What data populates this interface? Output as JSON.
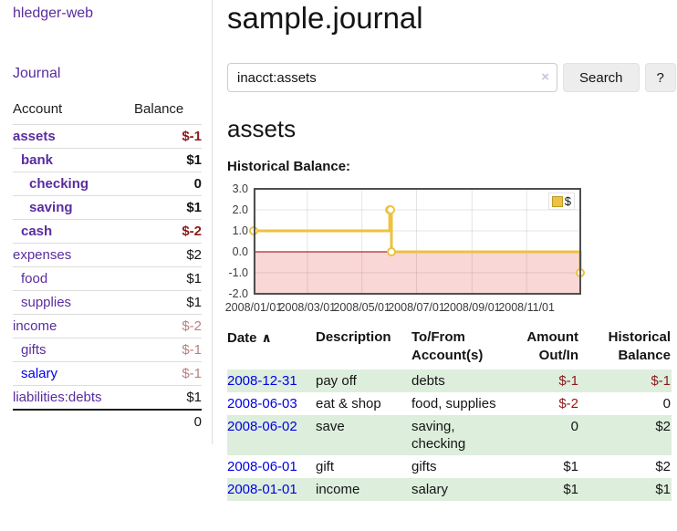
{
  "app": {
    "brand": "hledger-web",
    "nav_journal": "Journal"
  },
  "header": {
    "title": "sample.journal"
  },
  "search": {
    "value": "inacct:assets",
    "clear_icon": "×",
    "button_label": "Search",
    "help_label": "?"
  },
  "account_page": {
    "title": "assets",
    "chart_label": "Historical Balance:"
  },
  "sidebar": {
    "columns": [
      "Account",
      "Balance"
    ],
    "accounts": [
      {
        "name": "assets",
        "depth": 1,
        "balance": "$-1",
        "bold": true
      },
      {
        "name": "bank",
        "depth": 2,
        "balance": "$1",
        "bold": true
      },
      {
        "name": "checking",
        "depth": 3,
        "balance": "0",
        "bold": true
      },
      {
        "name": "saving",
        "depth": 3,
        "balance": "$1",
        "bold": true
      },
      {
        "name": "cash",
        "depth": 2,
        "balance": "$-2",
        "bold": true
      },
      {
        "name": "expenses",
        "depth": 1,
        "balance": "$2",
        "bold": false
      },
      {
        "name": "food",
        "depth": 2,
        "balance": "$1",
        "bold": false
      },
      {
        "name": "supplies",
        "depth": 2,
        "balance": "$1",
        "bold": false
      },
      {
        "name": "income",
        "depth": 1,
        "balance": "$-2",
        "bold": false
      },
      {
        "name": "gifts",
        "depth": 2,
        "balance": "$-1",
        "bold": false
      },
      {
        "name": "salary",
        "depth": 2,
        "balance": "$-1",
        "bold": false,
        "blue_link": true
      },
      {
        "name": "liabilities:debts",
        "depth": 1,
        "balance": "$1",
        "bold": false
      }
    ],
    "total": "0"
  },
  "chart_data": {
    "type": "line",
    "step": true,
    "title": "Historical Balance:",
    "series": [
      {
        "name": "$",
        "color": "#edc240",
        "points": [
          [
            "2008-01-01",
            1
          ],
          [
            "2008-06-01",
            2
          ],
          [
            "2008-06-02",
            2
          ],
          [
            "2008-06-03",
            0
          ],
          [
            "2008-12-31",
            -1
          ]
        ]
      }
    ],
    "x_range": [
      "2008-01-01",
      "2008-12-31"
    ],
    "x_tick_labels": [
      "2008/01/01",
      "2008/03/01",
      "2008/05/01",
      "2008/07/01",
      "2008/09/01",
      "2008/11/01"
    ],
    "y_ticks": [
      3,
      2,
      1,
      0,
      -1,
      -2
    ],
    "ylim": [
      -2,
      3
    ],
    "grid": true,
    "legend_position": "top-right",
    "zero_line_color": "#8b0000",
    "negative_region_color": "#fad7d7",
    "plot_border_color": "#4f4f4f"
  },
  "register": {
    "columns": [
      {
        "key": "date",
        "label": "Date",
        "sortable": true,
        "sort_icon": "∧",
        "align": "left"
      },
      {
        "key": "description",
        "label": "Description",
        "sortable": false,
        "align": "left"
      },
      {
        "key": "accounts",
        "label": "To/From Account(s)",
        "sortable": false,
        "align": "left"
      },
      {
        "key": "amount",
        "label": "Amount Out/In",
        "sortable": false,
        "align": "right"
      },
      {
        "key": "balance",
        "label": "Historical Balance",
        "sortable": false,
        "align": "right"
      }
    ],
    "rows": [
      {
        "date": "2008-12-31",
        "description": "pay off",
        "accounts": "debts",
        "amount": "$-1",
        "balance": "$-1"
      },
      {
        "date": "2008-06-03",
        "description": "eat & shop",
        "accounts": "food, supplies",
        "amount": "$-2",
        "balance": "0"
      },
      {
        "date": "2008-06-02",
        "description": "save",
        "accounts": "saving, checking",
        "amount": "0",
        "balance": "$2"
      },
      {
        "date": "2008-06-01",
        "description": "gift",
        "accounts": "gifts",
        "amount": "$1",
        "balance": "$2"
      },
      {
        "date": "2008-01-01",
        "description": "income",
        "accounts": "salary",
        "amount": "$1",
        "balance": "$1"
      }
    ]
  },
  "colors": {
    "purple-link": "#5a2ca0",
    "blue-link": "#0000e6",
    "negative-strong": "#8b1a1a",
    "negative-muted": "#b97f7f",
    "row-green": "#ddeedd",
    "divider": "#dcdcdc"
  }
}
